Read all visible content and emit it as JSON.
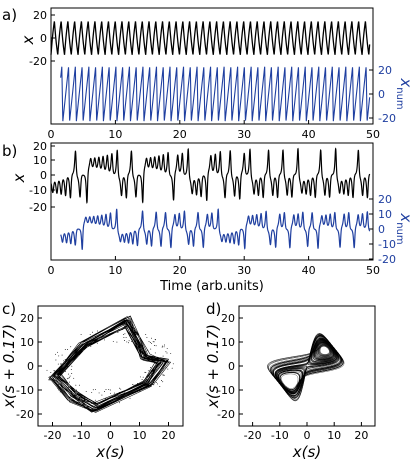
{
  "chart_data": [
    {
      "type": "line",
      "panel": "a)",
      "xlim": [
        0,
        50
      ],
      "x_ticks": [
        "0",
        "10",
        "20",
        "30",
        "40",
        "50"
      ],
      "xlabel": "",
      "series": [
        {
          "name": "",
          "ylabel": "x",
          "y_axis": "left",
          "color": "#000000",
          "ylim": [
            -24,
            24
          ],
          "y_ticks": [
            "20",
            "0",
            "-20"
          ],
          "x_range": [
            0,
            49.5
          ],
          "period": 1.05,
          "amplitude": 18,
          "baseline": 0
        },
        {
          "name": "",
          "ylabel": "x_num",
          "y_axis": "right",
          "color": "#1f3fa0",
          "ylim": [
            -22,
            22
          ],
          "y_ticks": [
            "20",
            "0",
            "-20"
          ],
          "x_range": [
            1.5,
            49.5
          ],
          "period": 1.05,
          "amplitude": 21,
          "baseline": 0
        }
      ]
    },
    {
      "type": "line",
      "panel": "b)",
      "xlim": [
        0,
        50
      ],
      "x_ticks": [
        "0",
        "10",
        "20",
        "30",
        "40",
        "50"
      ],
      "xlabel": "Time (arb.units)",
      "series": [
        {
          "name": "",
          "ylabel": "x",
          "y_axis": "left",
          "color": "#000000",
          "ylim": [
            -22,
            22
          ],
          "y_ticks": [
            "20",
            "10",
            "0",
            "-10",
            "-20"
          ],
          "x_range": [
            0,
            49.5
          ],
          "behaviour": "chaotic double-scroll"
        },
        {
          "name": "",
          "ylabel": "x_num",
          "y_axis": "right",
          "color": "#1f3fa0",
          "ylim": [
            -22,
            22
          ],
          "y_ticks": [
            "20",
            "10",
            "0",
            "-10",
            "-20"
          ],
          "x_range": [
            1.5,
            49.5
          ],
          "behaviour": "chaotic double-scroll"
        }
      ]
    },
    {
      "type": "scatter",
      "panel": "c)",
      "xlabel": "x(s)",
      "ylabel": "x(s + 0.17)",
      "xlim": [
        -25,
        25
      ],
      "ylim": [
        -25,
        25
      ],
      "x_ticks": [
        "-20",
        "-10",
        "0",
        "10",
        "20"
      ],
      "y_ticks": [
        "20",
        "10",
        "0",
        "-10",
        "-20"
      ],
      "shape": "single-loop attractor",
      "color": "#000000"
    },
    {
      "type": "scatter",
      "panel": "d)",
      "xlabel": "x(s)",
      "ylabel": "x(s + 0.17)",
      "xlim": [
        -25,
        25
      ],
      "ylim": [
        -25,
        25
      ],
      "x_ticks": [
        "-20",
        "-10",
        "0",
        "10",
        "20"
      ],
      "y_ticks": [
        "20",
        "10",
        "0",
        "-10",
        "-20"
      ],
      "shape": "double-scroll attractor",
      "color": "#000000"
    }
  ]
}
